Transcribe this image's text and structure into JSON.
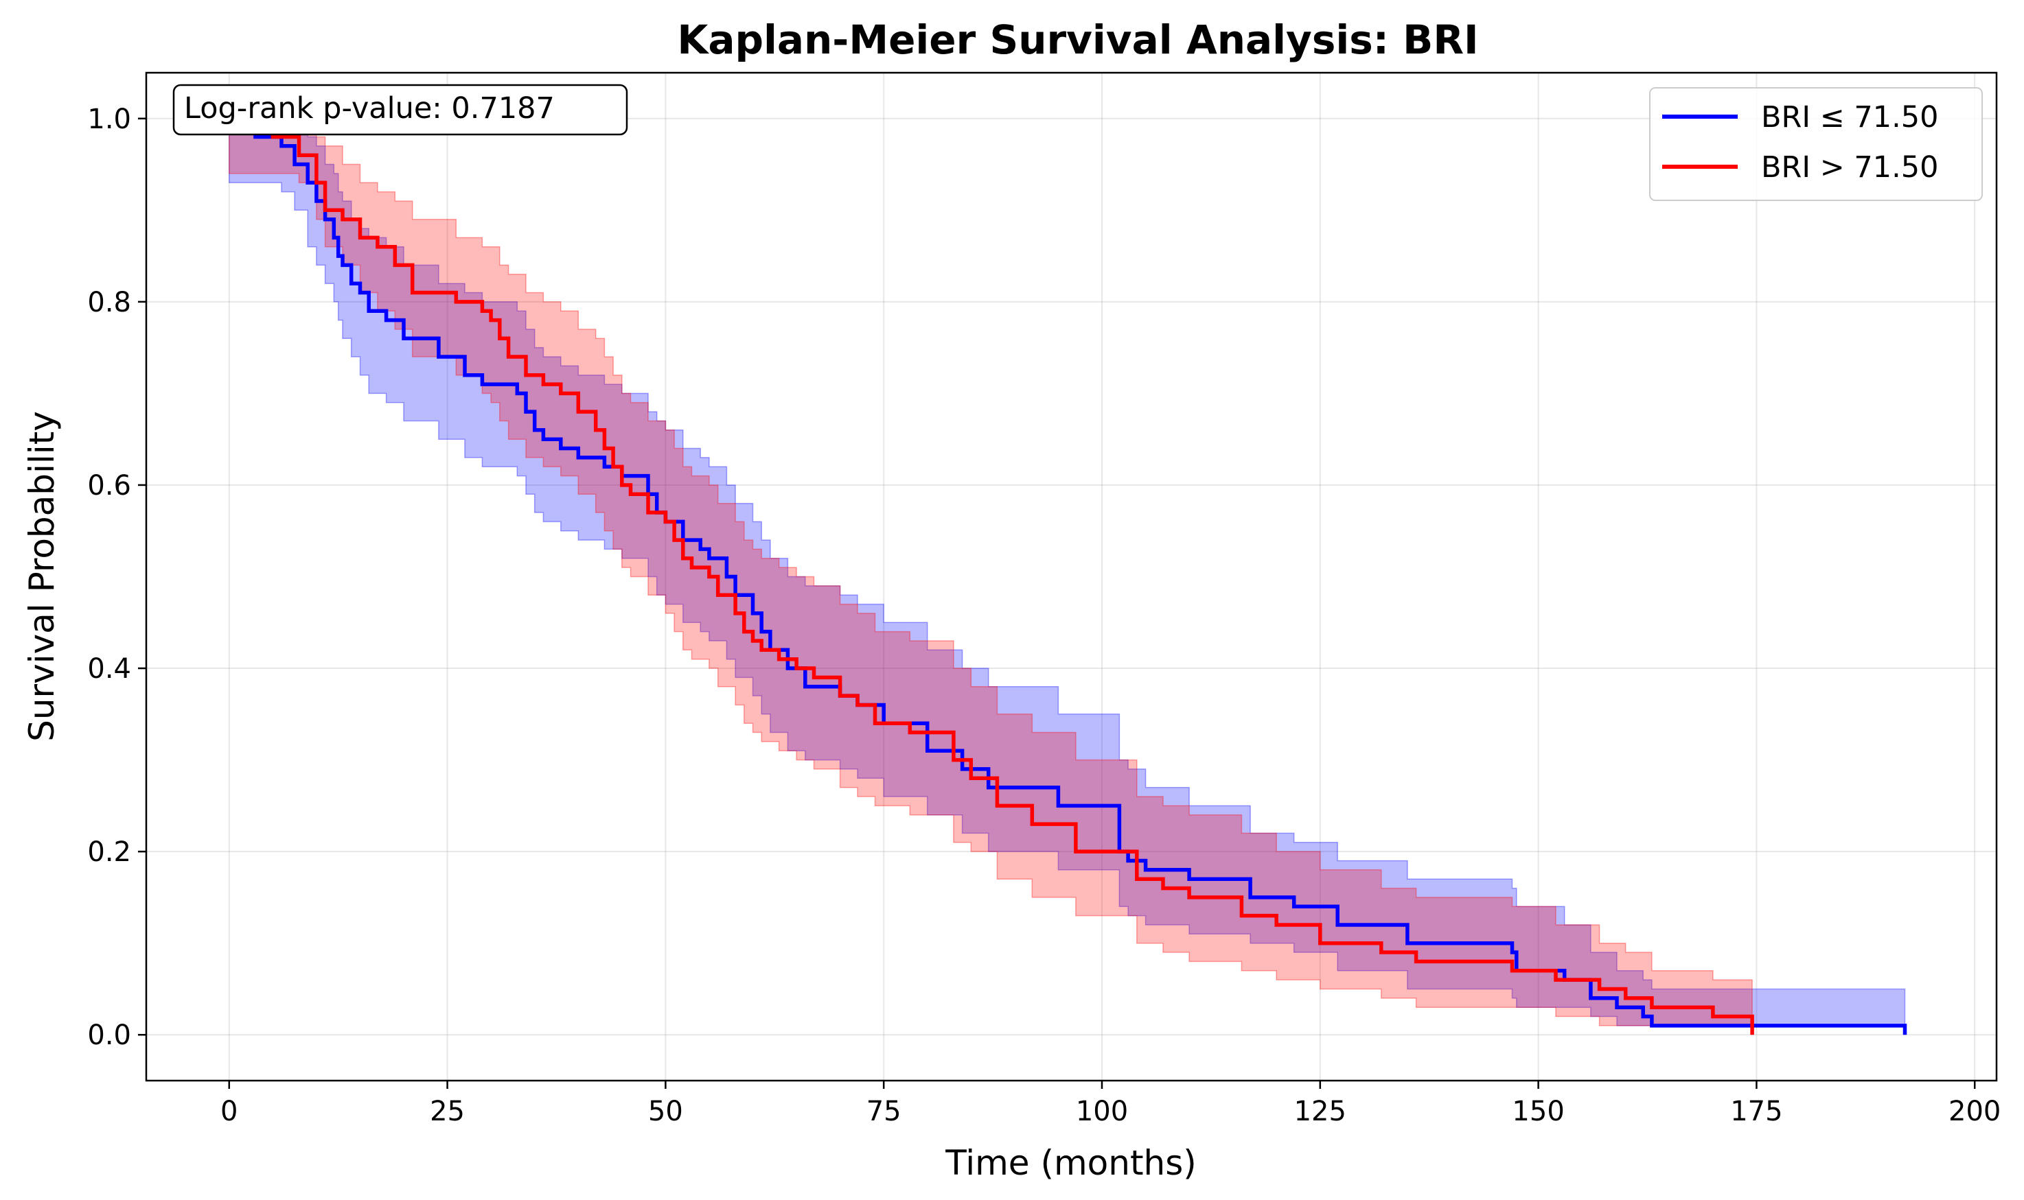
{
  "chart_data": {
    "type": "line",
    "title": "Kaplan-Meier Survival Analysis: BRI",
    "xlabel": "Time (months)",
    "ylabel": "Survival Probability",
    "xlim": [
      -9.5,
      202.5
    ],
    "ylim": [
      -0.05,
      1.05
    ],
    "xticks": [
      0,
      25,
      50,
      75,
      100,
      125,
      150,
      175,
      200
    ],
    "yticks": [
      0.0,
      0.2,
      0.4,
      0.6,
      0.8,
      1.0
    ],
    "xtick_labels": [
      "0",
      "25",
      "50",
      "75",
      "100",
      "125",
      "150",
      "175",
      "200"
    ],
    "ytick_labels": [
      "0.0",
      "0.2",
      "0.4",
      "0.6",
      "0.8",
      "1.0"
    ],
    "grid": true,
    "legend_position": "top-right",
    "annotation": "Log-rank p-value: 0.7187",
    "series": [
      {
        "name": "BRI ≤ 71.50",
        "color": "#0000ff",
        "band_color": "#0000ff",
        "t": [
          0,
          3,
          6,
          7.5,
          9,
          10,
          11,
          12,
          12.5,
          13,
          14,
          15,
          16,
          18,
          20,
          24,
          27,
          29,
          33,
          34,
          35,
          36,
          38,
          40,
          43,
          45,
          48,
          49,
          50,
          52,
          54,
          55,
          57,
          58,
          60,
          61,
          62,
          64,
          66,
          70,
          72,
          75,
          80,
          84,
          87,
          95,
          102,
          103,
          105,
          110,
          117,
          122,
          127,
          135,
          147,
          147.5,
          153,
          156,
          159,
          162,
          163,
          192
        ],
        "s": [
          1.0,
          0.98,
          0.97,
          0.95,
          0.93,
          0.91,
          0.89,
          0.87,
          0.85,
          0.84,
          0.82,
          0.81,
          0.79,
          0.78,
          0.76,
          0.74,
          0.72,
          0.71,
          0.7,
          0.68,
          0.66,
          0.65,
          0.64,
          0.63,
          0.62,
          0.61,
          0.59,
          0.57,
          0.56,
          0.54,
          0.53,
          0.52,
          0.5,
          0.48,
          0.46,
          0.44,
          0.42,
          0.4,
          0.38,
          0.37,
          0.36,
          0.34,
          0.31,
          0.29,
          0.27,
          0.25,
          0.2,
          0.19,
          0.18,
          0.17,
          0.15,
          0.14,
          0.12,
          0.1,
          0.09,
          0.07,
          0.06,
          0.04,
          0.03,
          0.02,
          0.01,
          0.0
        ],
        "ci_low": [
          0.93,
          0.93,
          0.92,
          0.9,
          0.86,
          0.84,
          0.82,
          0.8,
          0.78,
          0.76,
          0.74,
          0.72,
          0.7,
          0.69,
          0.67,
          0.65,
          0.63,
          0.62,
          0.61,
          0.59,
          0.57,
          0.56,
          0.55,
          0.54,
          0.53,
          0.52,
          0.5,
          0.48,
          0.47,
          0.45,
          0.44,
          0.43,
          0.41,
          0.39,
          0.37,
          0.35,
          0.33,
          0.31,
          0.3,
          0.29,
          0.28,
          0.26,
          0.24,
          0.22,
          0.2,
          0.18,
          0.14,
          0.13,
          0.12,
          0.11,
          0.1,
          0.09,
          0.07,
          0.05,
          0.04,
          0.03,
          0.03,
          0.02,
          0.01,
          0.01,
          0.01,
          0.01
        ],
        "ci_high": [
          1.0,
          1.0,
          1.0,
          0.99,
          0.98,
          0.97,
          0.95,
          0.94,
          0.92,
          0.91,
          0.89,
          0.88,
          0.87,
          0.86,
          0.84,
          0.82,
          0.81,
          0.8,
          0.79,
          0.77,
          0.75,
          0.74,
          0.73,
          0.72,
          0.71,
          0.7,
          0.68,
          0.67,
          0.66,
          0.64,
          0.63,
          0.62,
          0.6,
          0.58,
          0.56,
          0.54,
          0.52,
          0.5,
          0.49,
          0.48,
          0.47,
          0.45,
          0.42,
          0.4,
          0.38,
          0.35,
          0.3,
          0.29,
          0.27,
          0.25,
          0.22,
          0.21,
          0.19,
          0.17,
          0.16,
          0.14,
          0.12,
          0.09,
          0.07,
          0.06,
          0.05,
          0.05
        ]
      },
      {
        "name": "BRI > 71.50",
        "color": "#ff0000",
        "band_color": "#ff0000",
        "t": [
          0,
          5,
          8,
          10,
          11,
          13,
          15,
          17,
          19,
          21,
          26,
          29,
          30,
          31,
          32,
          34,
          36,
          38,
          40,
          42,
          43,
          44,
          45,
          46,
          48,
          50,
          51,
          52,
          53,
          55,
          56,
          58,
          59,
          60,
          61,
          63,
          65,
          67,
          70,
          72,
          74,
          78,
          83,
          85,
          88,
          92,
          97,
          104,
          107,
          110,
          116,
          120,
          125,
          132,
          136,
          147,
          152,
          157,
          160,
          163,
          170,
          174.5
        ],
        "s": [
          1.0,
          0.98,
          0.96,
          0.93,
          0.9,
          0.89,
          0.87,
          0.86,
          0.84,
          0.81,
          0.8,
          0.79,
          0.78,
          0.76,
          0.74,
          0.72,
          0.71,
          0.7,
          0.68,
          0.66,
          0.64,
          0.62,
          0.6,
          0.59,
          0.57,
          0.56,
          0.54,
          0.52,
          0.51,
          0.5,
          0.48,
          0.46,
          0.44,
          0.43,
          0.42,
          0.41,
          0.4,
          0.39,
          0.37,
          0.36,
          0.34,
          0.33,
          0.3,
          0.28,
          0.25,
          0.23,
          0.2,
          0.17,
          0.16,
          0.15,
          0.13,
          0.12,
          0.1,
          0.09,
          0.08,
          0.07,
          0.06,
          0.05,
          0.04,
          0.03,
          0.02,
          0.0
        ],
        "ci_low": [
          0.94,
          0.94,
          0.93,
          0.89,
          0.86,
          0.84,
          0.81,
          0.79,
          0.77,
          0.74,
          0.72,
          0.7,
          0.69,
          0.67,
          0.65,
          0.63,
          0.62,
          0.61,
          0.59,
          0.57,
          0.55,
          0.53,
          0.51,
          0.5,
          0.48,
          0.46,
          0.44,
          0.42,
          0.41,
          0.4,
          0.38,
          0.36,
          0.34,
          0.33,
          0.32,
          0.31,
          0.3,
          0.29,
          0.27,
          0.26,
          0.25,
          0.24,
          0.21,
          0.2,
          0.17,
          0.15,
          0.13,
          0.1,
          0.09,
          0.08,
          0.07,
          0.06,
          0.05,
          0.04,
          0.03,
          0.03,
          0.02,
          0.01,
          0.01,
          0.01,
          0.01,
          0.01
        ],
        "ci_high": [
          1.0,
          1.0,
          1.0,
          0.98,
          0.97,
          0.95,
          0.93,
          0.92,
          0.91,
          0.89,
          0.87,
          0.86,
          0.86,
          0.84,
          0.83,
          0.81,
          0.8,
          0.79,
          0.77,
          0.76,
          0.74,
          0.72,
          0.7,
          0.69,
          0.67,
          0.66,
          0.64,
          0.62,
          0.61,
          0.6,
          0.58,
          0.56,
          0.54,
          0.53,
          0.52,
          0.51,
          0.5,
          0.49,
          0.47,
          0.46,
          0.44,
          0.43,
          0.4,
          0.38,
          0.35,
          0.33,
          0.3,
          0.26,
          0.25,
          0.24,
          0.22,
          0.2,
          0.18,
          0.16,
          0.15,
          0.14,
          0.12,
          0.1,
          0.09,
          0.07,
          0.06,
          0.05
        ]
      }
    ]
  }
}
